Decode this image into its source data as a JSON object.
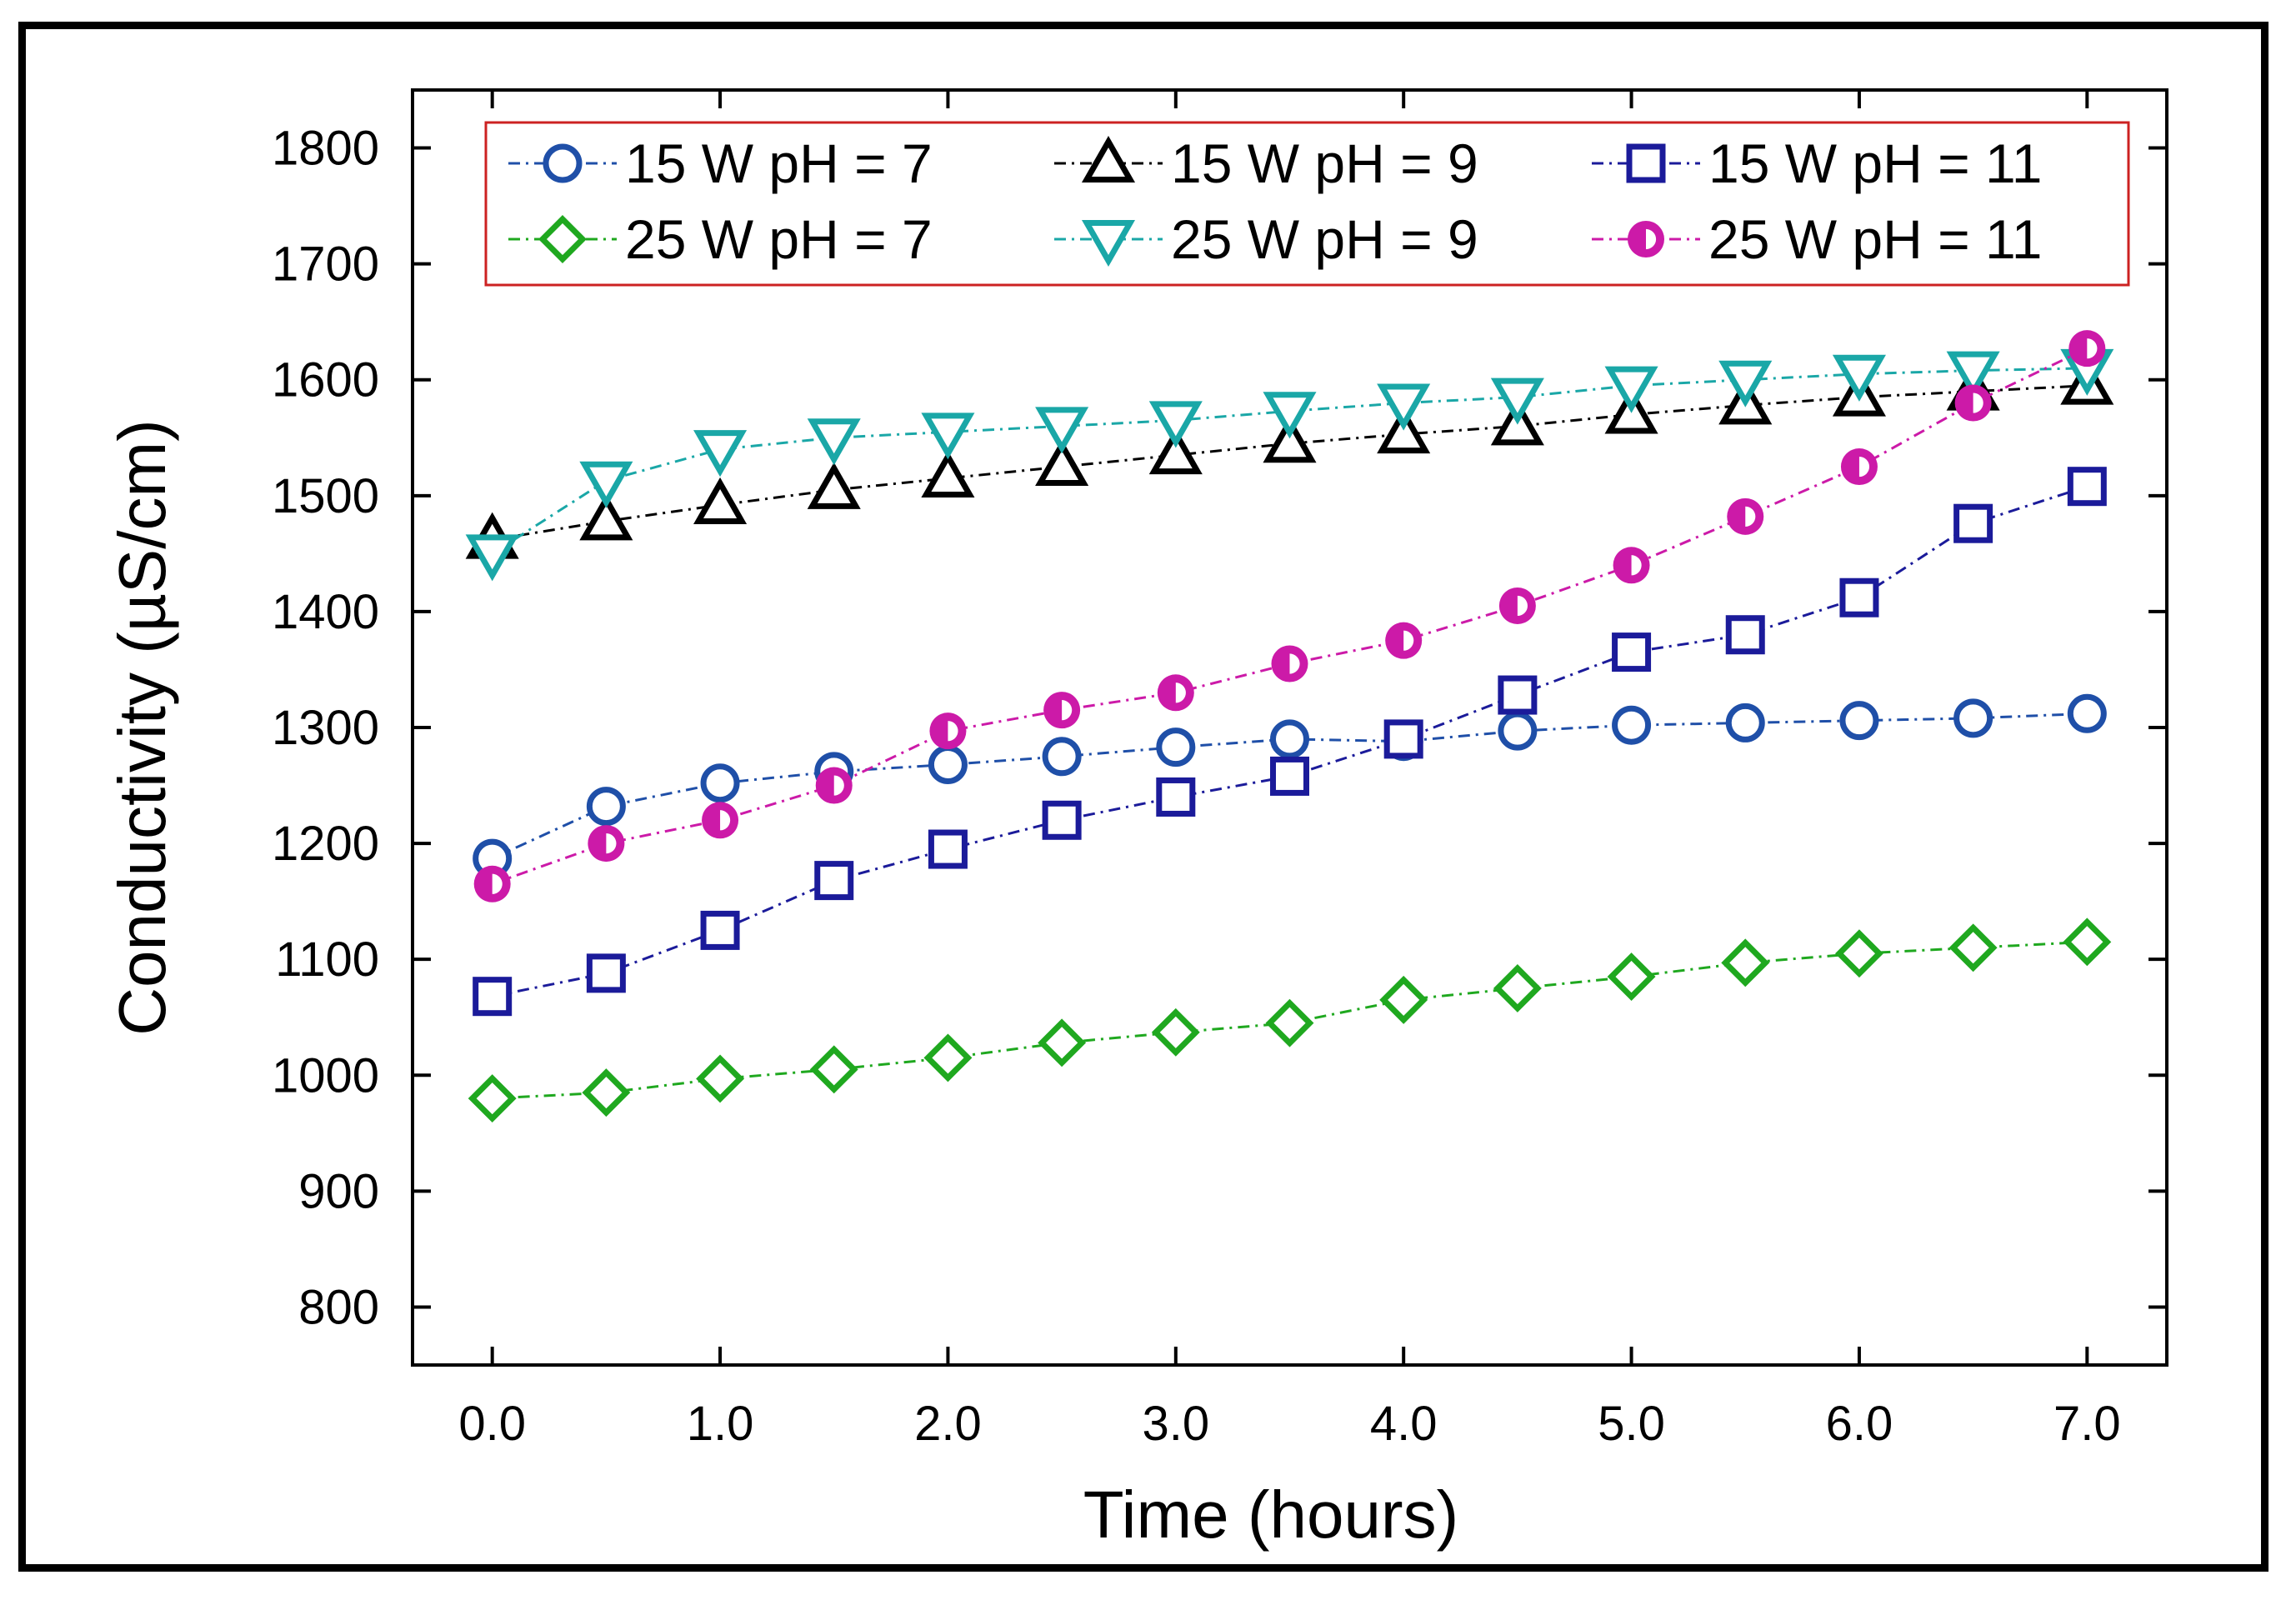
{
  "chart_data": {
    "type": "line",
    "title": "",
    "xlabel": "Time (hours)",
    "ylabel": "Conductivity (µS/cm)",
    "xlim": [
      -0.35,
      7.35
    ],
    "ylim": [
      750,
      1850
    ],
    "x_ticks": [
      0.0,
      1.0,
      2.0,
      3.0,
      4.0,
      5.0,
      6.0,
      7.0
    ],
    "x_tick_labels": [
      "0.0",
      "1.0",
      "2.0",
      "3.0",
      "4.0",
      "5.0",
      "6.0",
      "7.0"
    ],
    "y_ticks": [
      800,
      900,
      1000,
      1100,
      1200,
      1300,
      1400,
      1500,
      1600,
      1700,
      1800
    ],
    "y_tick_labels": [
      "800",
      "900",
      "1000",
      "1100",
      "1200",
      "1300",
      "1400",
      "1500",
      "1600",
      "1700",
      "1800"
    ],
    "legend_position": "top",
    "x": [
      0.0,
      0.5,
      1.0,
      1.5,
      2.0,
      2.5,
      3.0,
      3.5,
      4.0,
      4.5,
      5.0,
      5.5,
      6.0,
      6.5,
      7.0
    ],
    "series": [
      {
        "name": "15  W  pH = 7",
        "marker": "circle-open",
        "color": "#1f4fa8",
        "values": [
          1187,
          1232,
          1252,
          1262,
          1268,
          1275,
          1283,
          1290,
          1288,
          1297,
          1302,
          1304,
          1306,
          1308,
          1312
        ]
      },
      {
        "name": "15  W  pH = 9",
        "marker": "triangle-up-open",
        "color": "#000000",
        "values": [
          1462,
          1478,
          1492,
          1505,
          1515,
          1525,
          1535,
          1545,
          1553,
          1560,
          1570,
          1578,
          1585,
          1590,
          1595
        ]
      },
      {
        "name": "15  W  pH = 11",
        "marker": "square-open",
        "color": "#1b1b9a",
        "values": [
          1068,
          1088,
          1125,
          1168,
          1195,
          1220,
          1240,
          1258,
          1290,
          1328,
          1365,
          1380,
          1412,
          1476,
          1508
        ]
      },
      {
        "name": "25  W  pH = 7",
        "marker": "diamond-open",
        "color": "#1fa81f",
        "values": [
          980,
          985,
          997,
          1005,
          1015,
          1028,
          1037,
          1045,
          1065,
          1075,
          1085,
          1097,
          1105,
          1110,
          1115
        ]
      },
      {
        "name": "25  W  pH = 9",
        "marker": "triangle-down-open",
        "color": "#1aa7a7",
        "values": [
          1450,
          1513,
          1540,
          1550,
          1555,
          1560,
          1565,
          1573,
          1580,
          1585,
          1595,
          1600,
          1605,
          1608,
          1610
        ]
      },
      {
        "name": "25  W  pH = 11",
        "marker": "circle-half",
        "color": "#cc1aa8",
        "values": [
          1165,
          1200,
          1220,
          1250,
          1297,
          1315,
          1330,
          1355,
          1375,
          1405,
          1440,
          1482,
          1525,
          1580,
          1627
        ]
      }
    ],
    "legend_border_color": "#cc2222"
  }
}
